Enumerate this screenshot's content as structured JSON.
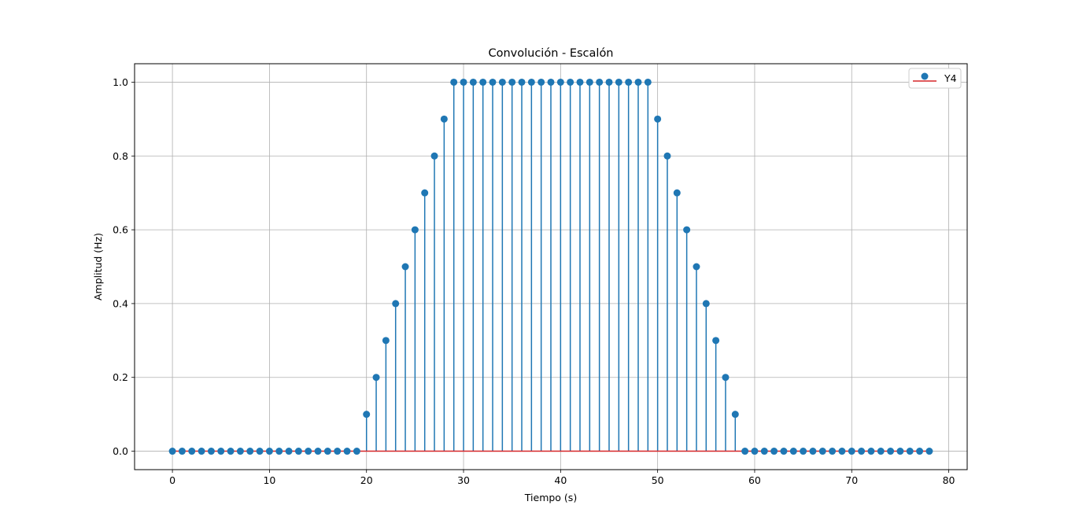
{
  "chart_data": {
    "type": "stem",
    "title": "Convolución - Escalón",
    "xlabel": "Tiempo (s)",
    "ylabel": "Amplitud (Hz)",
    "xlim": [
      -3.9,
      81.9
    ],
    "ylim": [
      -0.05,
      1.05
    ],
    "xticks": [
      0,
      10,
      20,
      30,
      40,
      50,
      60,
      70,
      80
    ],
    "yticks": [
      0.0,
      0.2,
      0.4,
      0.6,
      0.8,
      1.0
    ],
    "xtick_labels": [
      "0",
      "10",
      "20",
      "30",
      "40",
      "50",
      "60",
      "70",
      "80"
    ],
    "ytick_labels": [
      "0.0",
      "0.2",
      "0.4",
      "0.6",
      "0.8",
      "1.0"
    ],
    "grid": true,
    "legend_position": "top-right",
    "series": [
      {
        "name": "Y4",
        "marker_color": "#1f77b4",
        "baseline_color": "#d62728",
        "x": [
          0,
          1,
          2,
          3,
          4,
          5,
          6,
          7,
          8,
          9,
          10,
          11,
          12,
          13,
          14,
          15,
          16,
          17,
          18,
          19,
          20,
          21,
          22,
          23,
          24,
          25,
          26,
          27,
          28,
          29,
          30,
          31,
          32,
          33,
          34,
          35,
          36,
          37,
          38,
          39,
          40,
          41,
          42,
          43,
          44,
          45,
          46,
          47,
          48,
          49,
          50,
          51,
          52,
          53,
          54,
          55,
          56,
          57,
          58,
          59,
          60,
          61,
          62,
          63,
          64,
          65,
          66,
          67,
          68,
          69,
          70,
          71,
          72,
          73,
          74,
          75,
          76,
          77,
          78
        ],
        "y": [
          0,
          0,
          0,
          0,
          0,
          0,
          0,
          0,
          0,
          0,
          0,
          0,
          0,
          0,
          0,
          0,
          0,
          0,
          0,
          0,
          0.1,
          0.2,
          0.3,
          0.4,
          0.5,
          0.6,
          0.7,
          0.8,
          0.9,
          1,
          1,
          1,
          1,
          1,
          1,
          1,
          1,
          1,
          1,
          1,
          1,
          1,
          1,
          1,
          1,
          1,
          1,
          1,
          1,
          1,
          0.9,
          0.8,
          0.7,
          0.6,
          0.5,
          0.4,
          0.3,
          0.2,
          0.1,
          0,
          0,
          0,
          0,
          0,
          0,
          0,
          0,
          0,
          0,
          0,
          0,
          0,
          0,
          0,
          0,
          0,
          0,
          0,
          0
        ]
      }
    ]
  }
}
